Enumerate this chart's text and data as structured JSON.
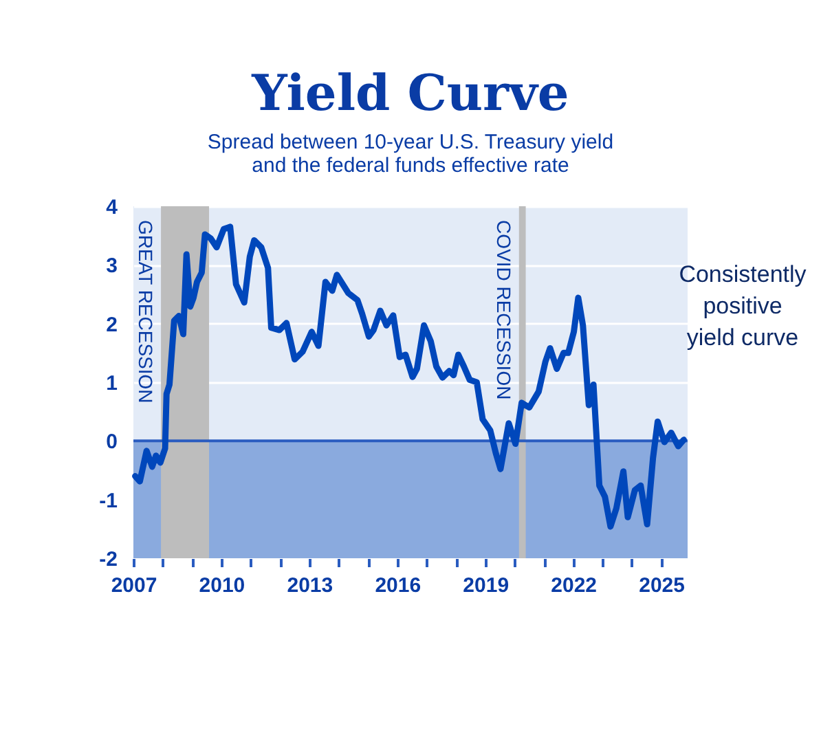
{
  "chart_data": {
    "type": "line",
    "title": "Yield Curve",
    "subtitle": [
      "Spread between 10-year U.S. Treasury yield",
      "and the federal funds effective rate"
    ],
    "x": [
      2007.06,
      2007.22,
      2007.45,
      2007.64,
      2007.77,
      2007.92,
      2008.08,
      2008.13,
      2008.23,
      2008.39,
      2008.55,
      2008.7,
      2008.81,
      2008.94,
      2009.05,
      2009.17,
      2009.33,
      2009.44,
      2009.64,
      2009.84,
      2010.08,
      2010.3,
      2010.5,
      2010.78,
      2010.97,
      2011.12,
      2011.36,
      2011.59,
      2011.7,
      2011.98,
      2012.22,
      2012.5,
      2012.77,
      2013.08,
      2013.31,
      2013.55,
      2013.78,
      2013.94,
      2014.33,
      2014.64,
      2014.8,
      2015.03,
      2015.19,
      2015.42,
      2015.63,
      2015.86,
      2016.08,
      2016.28,
      2016.52,
      2016.67,
      2016.91,
      2017.14,
      2017.33,
      2017.54,
      2017.77,
      2017.92,
      2018.08,
      2018.27,
      2018.47,
      2018.71,
      2018.91,
      2019.17,
      2019.36,
      2019.52,
      2019.8,
      2020.03,
      2020.24,
      2020.5,
      2020.82,
      2021.05,
      2021.21,
      2021.44,
      2021.67,
      2021.83,
      2022.02,
      2022.17,
      2022.33,
      2022.53,
      2022.69,
      2022.89,
      2023.08,
      2023.27,
      2023.47,
      2023.71,
      2023.86,
      2024.1,
      2024.3,
      2024.52,
      2024.72,
      2024.88,
      2025.11,
      2025.34,
      2025.58,
      2025.77
    ],
    "series": [
      {
        "color": "#0047bb",
        "values": [
          -0.6,
          -0.69,
          -0.17,
          -0.44,
          -0.25,
          -0.37,
          -0.13,
          0.8,
          0.96,
          2.05,
          2.13,
          1.82,
          3.18,
          2.29,
          2.44,
          2.71,
          2.87,
          3.52,
          3.45,
          3.3,
          3.61,
          3.65,
          2.67,
          2.36,
          3.14,
          3.42,
          3.3,
          2.95,
          1.93,
          1.89,
          2.01,
          1.39,
          1.52,
          1.86,
          1.62,
          2.71,
          2.56,
          2.83,
          2.52,
          2.4,
          2.17,
          1.78,
          1.89,
          2.22,
          1.97,
          2.14,
          1.43,
          1.47,
          1.09,
          1.23,
          1.97,
          1.7,
          1.27,
          1.08,
          1.19,
          1.12,
          1.47,
          1.27,
          1.04,
          1.0,
          0.37,
          0.18,
          -0.21,
          -0.48,
          0.3,
          -0.05,
          0.65,
          0.57,
          0.84,
          1.35,
          1.58,
          1.23,
          1.5,
          1.5,
          1.86,
          2.44,
          1.97,
          0.61,
          0.96,
          -0.76,
          -0.95,
          -1.46,
          -1.15,
          -0.52,
          -1.3,
          -0.84,
          -0.76,
          -1.42,
          -0.29,
          0.33,
          -0.02,
          0.14,
          -0.09,
          0.02
        ]
      }
    ],
    "xlim": [
      2007,
      2025.9
    ],
    "xticks": [
      2007,
      {
        "value": 2008,
        "label": null
      },
      {
        "value": 2009,
        "label": null
      },
      2010,
      {
        "value": 2011,
        "label": null
      },
      {
        "value": 2012,
        "label": null
      },
      2013,
      {
        "value": 2014,
        "label": null
      },
      {
        "value": 2015,
        "label": null
      },
      2016,
      {
        "value": 2017,
        "label": null
      },
      {
        "value": 2018,
        "label": null
      },
      2019,
      {
        "value": 2020,
        "label": null
      },
      {
        "value": 2021,
        "label": null
      },
      2022,
      {
        "value": 2023,
        "label": null
      },
      {
        "value": 2024,
        "label": null
      },
      2025
    ],
    "ylim": [
      -2,
      4
    ],
    "yticks": [
      -2,
      -1,
      0,
      1,
      2,
      3,
      4
    ],
    "grid": "y",
    "marker": "none",
    "line_style": "solid",
    "ref_lines": [
      {
        "axis": "y",
        "value": 0,
        "color": "#2a5cc0"
      }
    ],
    "bands": [
      {
        "axis": "y",
        "from": -2,
        "to": 0,
        "color": "#8aaade"
      },
      {
        "axis": "x",
        "from": 2007.94,
        "to": 2009.58,
        "label": "GREAT RECESSION",
        "color": "#bdbdbd"
      },
      {
        "axis": "x",
        "from": 2020.15,
        "to": 2020.38,
        "label": "COVID RECESSION",
        "color": "#bdbdbd"
      }
    ],
    "annotations": [
      "Consistently\npositive\nyield curve"
    ]
  }
}
